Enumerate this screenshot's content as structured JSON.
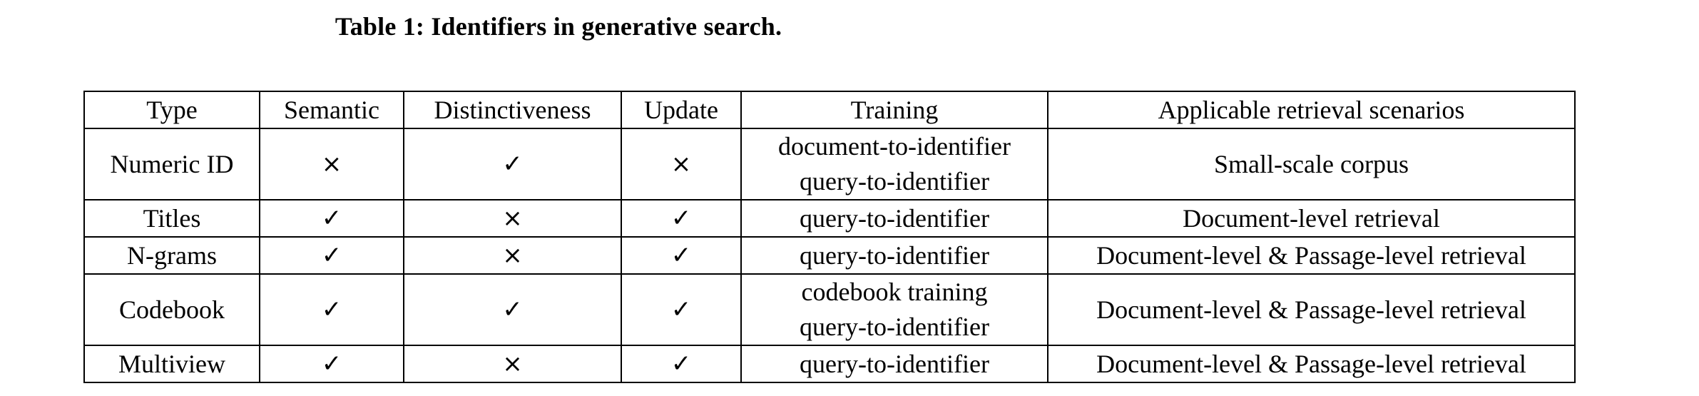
{
  "caption": "Table 1: Identifiers in generative search.",
  "columns": [
    "Type",
    "Semantic",
    "Distinctiveness",
    "Update",
    "Training",
    "Applicable retrieval scenarios"
  ],
  "rows": [
    {
      "type": "Numeric ID",
      "semantic": "×",
      "distinctiveness": "✓",
      "update": "×",
      "training": [
        "document-to-identifier",
        "query-to-identifier"
      ],
      "scenarios": "Small-scale corpus"
    },
    {
      "type": "Titles",
      "semantic": "✓",
      "distinctiveness": "×",
      "update": "✓",
      "training": [
        "query-to-identifier"
      ],
      "scenarios": "Document-level retrieval"
    },
    {
      "type": "N-grams",
      "semantic": "✓",
      "distinctiveness": "×",
      "update": "✓",
      "training": [
        "query-to-identifier"
      ],
      "scenarios": "Document-level & Passage-level retrieval"
    },
    {
      "type": "Codebook",
      "semantic": "✓",
      "distinctiveness": "✓",
      "update": "✓",
      "training": [
        "codebook training",
        "query-to-identifier"
      ],
      "scenarios": "Document-level & Passage-level retrieval"
    },
    {
      "type": "Multiview",
      "semantic": "✓",
      "distinctiveness": "×",
      "update": "✓",
      "training": [
        "query-to-identifier"
      ],
      "scenarios": "Document-level & Passage-level retrieval"
    }
  ]
}
